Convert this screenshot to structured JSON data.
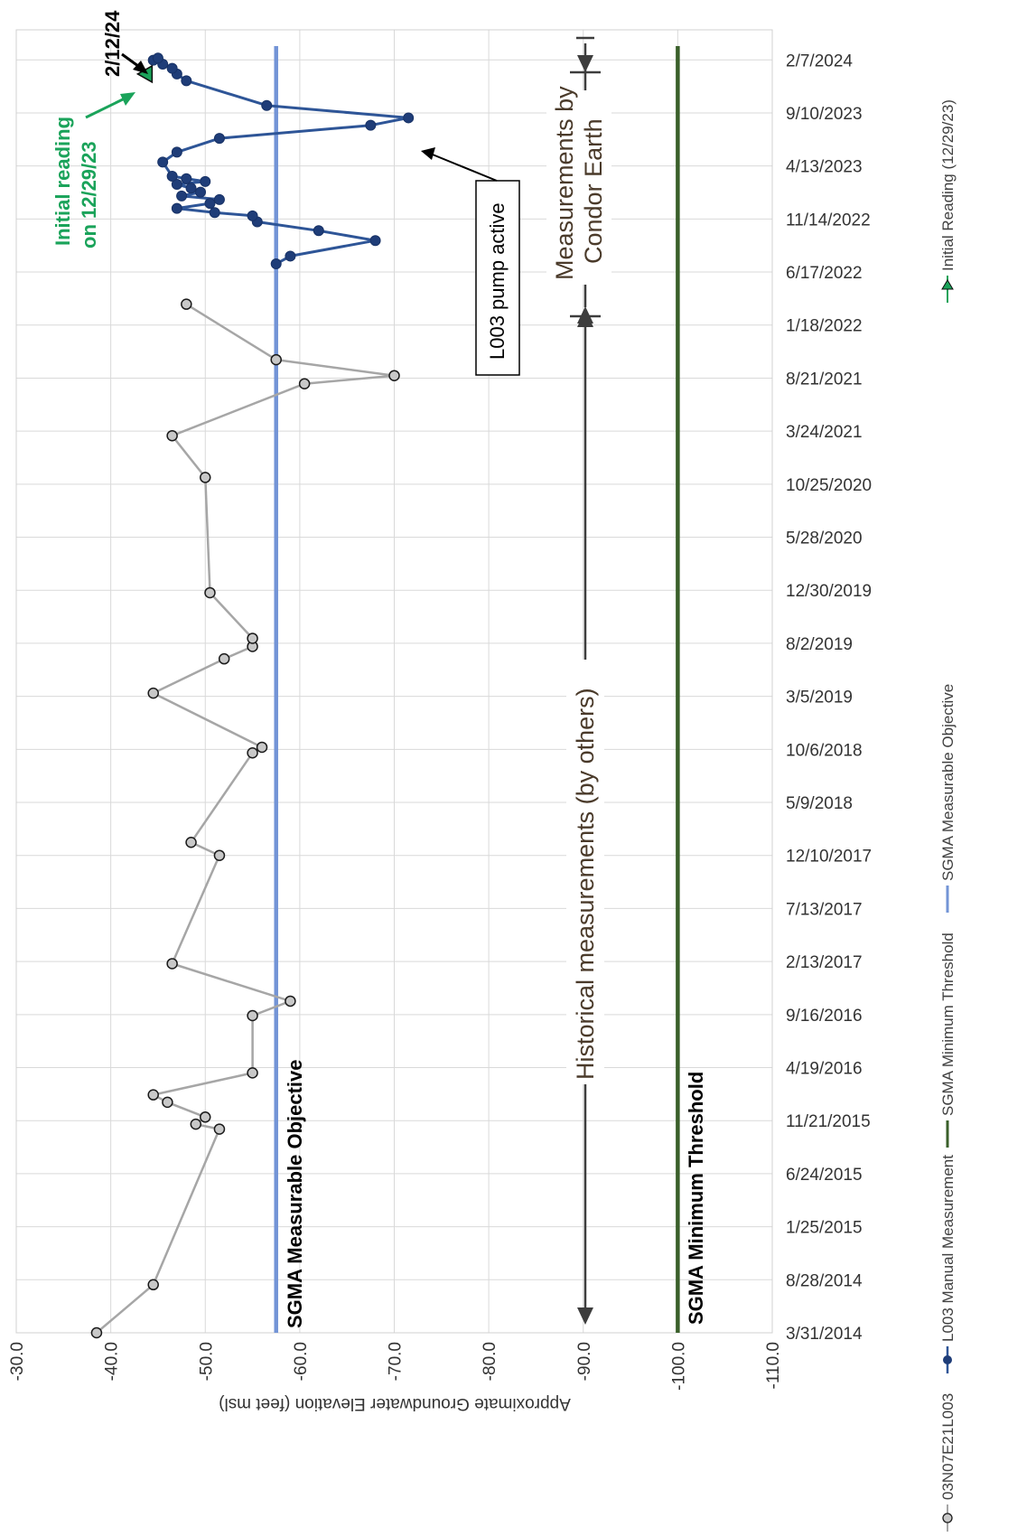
{
  "chart_data": {
    "type": "line",
    "orientation": "rotated-90",
    "xlabel": "",
    "ylabel": "Approximate Groundwater Elevation (feet msl)",
    "ylim": [
      -110.0,
      -30.0
    ],
    "y_ticks": [
      "-30.0",
      "-40.0",
      "-50.0",
      "-60.0",
      "-70.0",
      "-80.0",
      "-90.0",
      "-100.0",
      "-110.0"
    ],
    "x_ticks": [
      "3/31/2014",
      "8/28/2014",
      "1/25/2015",
      "6/24/2015",
      "11/21/2015",
      "4/19/2016",
      "9/16/2016",
      "2/13/2017",
      "7/13/2017",
      "12/10/2017",
      "5/9/2018",
      "10/6/2018",
      "3/5/2019",
      "8/2/2019",
      "12/30/2019",
      "5/28/2020",
      "10/25/2020",
      "3/24/2021",
      "8/21/2021",
      "1/18/2022",
      "6/17/2022",
      "11/14/2022",
      "4/13/2023",
      "9/10/2023",
      "2/7/2024"
    ],
    "xlim": [
      "3/31/2014",
      "5/2/2024"
    ],
    "grid": true,
    "legend_position": "bottom",
    "series": [
      {
        "name": "03N07E21L003",
        "color": "#a6a6a6",
        "marker": "circle",
        "points": [
          [
            "3/31/2014",
            -38.5
          ],
          [
            "8/14/2014",
            -44.5
          ],
          [
            "10/28/2015",
            -51.5
          ],
          [
            "11/11/2015",
            -49.0
          ],
          [
            "12/1/2015",
            -50.0
          ],
          [
            "1/12/2016",
            -46.0
          ],
          [
            "2/2/2016",
            -44.5
          ],
          [
            "4/4/2016",
            -55.0
          ],
          [
            "9/13/2016",
            -55.0
          ],
          [
            "10/24/2016",
            -59.0
          ],
          [
            "2/7/2017",
            -46.5
          ],
          [
            "12/10/2017",
            -51.5
          ],
          [
            "1/16/2018",
            -48.5
          ],
          [
            "9/26/2018",
            -55.0
          ],
          [
            "10/12/2018",
            -56.0
          ],
          [
            "3/14/2019",
            -44.5
          ],
          [
            "6/19/2019",
            -52.0
          ],
          [
            "7/24/2019",
            -55.0
          ],
          [
            "8/16/2019",
            -55.0
          ],
          [
            "12/23/2019",
            -50.5
          ],
          [
            "11/13/2020",
            -50.0
          ],
          [
            "3/11/2021",
            -46.5
          ],
          [
            "8/5/2021",
            -60.5
          ],
          [
            "8/28/2021",
            -70.0
          ],
          [
            "10/12/2021",
            -57.5
          ],
          [
            "3/18/2022",
            -48.0
          ]
        ]
      },
      {
        "name": "L003 Manual Measurement",
        "color": "#2e5597",
        "marker": "filled-circle",
        "points": [
          [
            "7/10/2022",
            -57.5
          ],
          [
            "8/1/2022",
            -59.0
          ],
          [
            "9/14/2022",
            -68.0
          ],
          [
            "10/12/2022",
            -62.0
          ],
          [
            "11/6/2022",
            -55.5
          ],
          [
            "11/23/2022",
            -55.0
          ],
          [
            "12/2/2022",
            -51.0
          ],
          [
            "12/14/2022",
            -47.0
          ],
          [
            "12/28/2022",
            -50.5
          ],
          [
            "1/8/2023",
            -51.5
          ],
          [
            "1/18/2023",
            -47.5
          ],
          [
            "1/29/2023",
            -49.5
          ],
          [
            "2/9/2023",
            -48.5
          ],
          [
            "2/20/2023",
            -47.0
          ],
          [
            "2/28/2023",
            -50.0
          ],
          [
            "3/8/2023",
            -48.0
          ],
          [
            "3/15/2023",
            -46.5
          ],
          [
            "4/24/2023",
            -45.5
          ],
          [
            "5/22/2023",
            -47.0
          ],
          [
            "6/30/2023",
            -51.5
          ],
          [
            "8/6/2023",
            -67.5
          ],
          [
            "8/27/2023",
            -71.5
          ],
          [
            "10/1/2023",
            -56.5
          ],
          [
            "12/10/2023",
            -48.0
          ],
          [
            "12/29/2023",
            -47.0
          ],
          [
            "1/14/2024",
            -46.5
          ],
          [
            "1/26/2024",
            -45.5
          ],
          [
            "2/6/2024",
            -44.5
          ],
          [
            "2/12/2024",
            -45.0
          ]
        ]
      },
      {
        "name": "SGMA Minimum Threshold",
        "color": "#3a5f2a",
        "constant": -100.0
      },
      {
        "name": "SGMA Measurable Objective",
        "color": "#7394d6",
        "constant": -57.5
      },
      {
        "name": "Initial Reading (12/29/23)",
        "color": "#1aa35a",
        "marker": "triangle",
        "points": [
          [
            "12/29/2023",
            -43.8
          ]
        ]
      }
    ],
    "annotations": {
      "measurable_objective": "SGMA Measurable Objective",
      "minimum_threshold": "SGMA Minimum Threshold",
      "pump_active": "L003 pump active",
      "historical": "Historical measurements (by others)",
      "condor_line1": "Measurements by",
      "condor_line2": "Condor Earth",
      "initial_line1": "Initial reading",
      "initial_line2": "on 12/29/23",
      "date_2_12_24": "2/12/24"
    }
  }
}
